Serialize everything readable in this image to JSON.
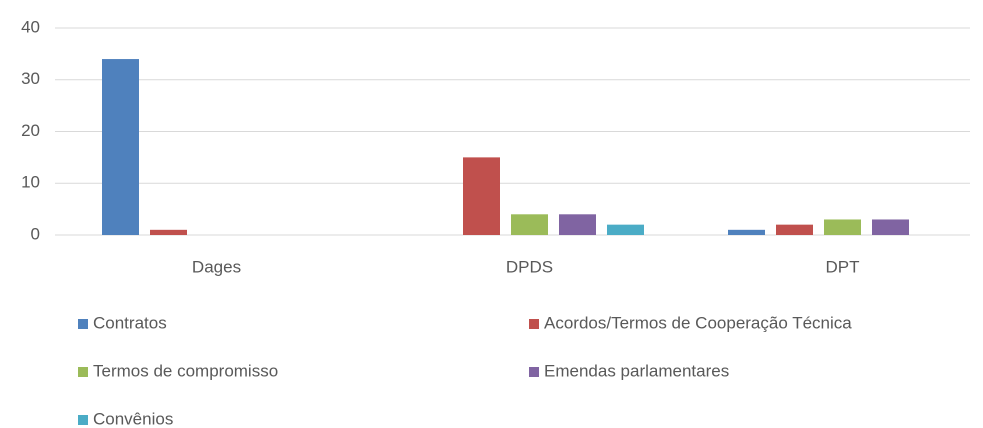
{
  "chart_data": {
    "type": "bar",
    "categories": [
      "Dages",
      "DPDS",
      "DPT"
    ],
    "series": [
      {
        "name": "Contratos",
        "color": "#4f81bd",
        "values": [
          34,
          0,
          1
        ]
      },
      {
        "name": "Acordos/Termos de Cooperação Técnica",
        "color": "#c0504d",
        "values": [
          1,
          15,
          2
        ]
      },
      {
        "name": "Termos de compromisso",
        "color": "#9bbb59",
        "values": [
          0,
          4,
          3
        ]
      },
      {
        "name": "Emendas parlamentares",
        "color": "#8064a2",
        "values": [
          0,
          4,
          3
        ]
      },
      {
        "name": "Convênios",
        "color": "#4bacc6",
        "values": [
          0,
          2,
          0
        ]
      }
    ],
    "ylim": [
      0,
      40
    ],
    "yticks": [
      0,
      10,
      20,
      30,
      40
    ],
    "grid": true,
    "legend": "bottom"
  }
}
